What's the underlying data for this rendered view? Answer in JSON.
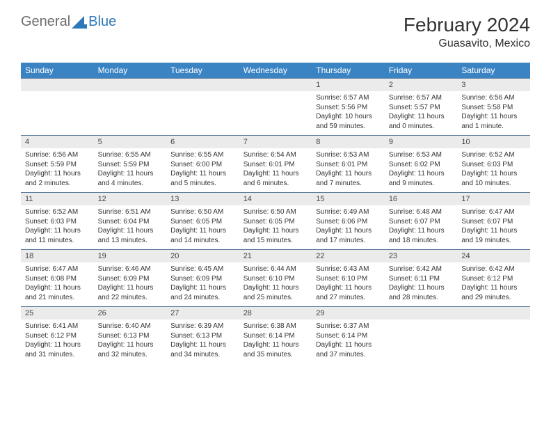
{
  "logo": {
    "text1": "General",
    "text2": "Blue"
  },
  "title": "February 2024",
  "location": "Guasavito, Mexico",
  "colors": {
    "header_bg": "#3b84c4",
    "header_text": "#ffffff",
    "daynum_bg": "#ebebeb",
    "border": "#5a7a9a",
    "logo_gray": "#6c6c6c",
    "logo_blue": "#2e77b8"
  },
  "day_names": [
    "Sunday",
    "Monday",
    "Tuesday",
    "Wednesday",
    "Thursday",
    "Friday",
    "Saturday"
  ],
  "weeks": [
    [
      {
        "empty": true
      },
      {
        "empty": true
      },
      {
        "empty": true
      },
      {
        "empty": true
      },
      {
        "num": "1",
        "sunrise": "Sunrise: 6:57 AM",
        "sunset": "Sunset: 5:56 PM",
        "daylight": "Daylight: 10 hours and 59 minutes."
      },
      {
        "num": "2",
        "sunrise": "Sunrise: 6:57 AM",
        "sunset": "Sunset: 5:57 PM",
        "daylight": "Daylight: 11 hours and 0 minutes."
      },
      {
        "num": "3",
        "sunrise": "Sunrise: 6:56 AM",
        "sunset": "Sunset: 5:58 PM",
        "daylight": "Daylight: 11 hours and 1 minute."
      }
    ],
    [
      {
        "num": "4",
        "sunrise": "Sunrise: 6:56 AM",
        "sunset": "Sunset: 5:59 PM",
        "daylight": "Daylight: 11 hours and 2 minutes."
      },
      {
        "num": "5",
        "sunrise": "Sunrise: 6:55 AM",
        "sunset": "Sunset: 5:59 PM",
        "daylight": "Daylight: 11 hours and 4 minutes."
      },
      {
        "num": "6",
        "sunrise": "Sunrise: 6:55 AM",
        "sunset": "Sunset: 6:00 PM",
        "daylight": "Daylight: 11 hours and 5 minutes."
      },
      {
        "num": "7",
        "sunrise": "Sunrise: 6:54 AM",
        "sunset": "Sunset: 6:01 PM",
        "daylight": "Daylight: 11 hours and 6 minutes."
      },
      {
        "num": "8",
        "sunrise": "Sunrise: 6:53 AM",
        "sunset": "Sunset: 6:01 PM",
        "daylight": "Daylight: 11 hours and 7 minutes."
      },
      {
        "num": "9",
        "sunrise": "Sunrise: 6:53 AM",
        "sunset": "Sunset: 6:02 PM",
        "daylight": "Daylight: 11 hours and 9 minutes."
      },
      {
        "num": "10",
        "sunrise": "Sunrise: 6:52 AM",
        "sunset": "Sunset: 6:03 PM",
        "daylight": "Daylight: 11 hours and 10 minutes."
      }
    ],
    [
      {
        "num": "11",
        "sunrise": "Sunrise: 6:52 AM",
        "sunset": "Sunset: 6:03 PM",
        "daylight": "Daylight: 11 hours and 11 minutes."
      },
      {
        "num": "12",
        "sunrise": "Sunrise: 6:51 AM",
        "sunset": "Sunset: 6:04 PM",
        "daylight": "Daylight: 11 hours and 13 minutes."
      },
      {
        "num": "13",
        "sunrise": "Sunrise: 6:50 AM",
        "sunset": "Sunset: 6:05 PM",
        "daylight": "Daylight: 11 hours and 14 minutes."
      },
      {
        "num": "14",
        "sunrise": "Sunrise: 6:50 AM",
        "sunset": "Sunset: 6:05 PM",
        "daylight": "Daylight: 11 hours and 15 minutes."
      },
      {
        "num": "15",
        "sunrise": "Sunrise: 6:49 AM",
        "sunset": "Sunset: 6:06 PM",
        "daylight": "Daylight: 11 hours and 17 minutes."
      },
      {
        "num": "16",
        "sunrise": "Sunrise: 6:48 AM",
        "sunset": "Sunset: 6:07 PM",
        "daylight": "Daylight: 11 hours and 18 minutes."
      },
      {
        "num": "17",
        "sunrise": "Sunrise: 6:47 AM",
        "sunset": "Sunset: 6:07 PM",
        "daylight": "Daylight: 11 hours and 19 minutes."
      }
    ],
    [
      {
        "num": "18",
        "sunrise": "Sunrise: 6:47 AM",
        "sunset": "Sunset: 6:08 PM",
        "daylight": "Daylight: 11 hours and 21 minutes."
      },
      {
        "num": "19",
        "sunrise": "Sunrise: 6:46 AM",
        "sunset": "Sunset: 6:09 PM",
        "daylight": "Daylight: 11 hours and 22 minutes."
      },
      {
        "num": "20",
        "sunrise": "Sunrise: 6:45 AM",
        "sunset": "Sunset: 6:09 PM",
        "daylight": "Daylight: 11 hours and 24 minutes."
      },
      {
        "num": "21",
        "sunrise": "Sunrise: 6:44 AM",
        "sunset": "Sunset: 6:10 PM",
        "daylight": "Daylight: 11 hours and 25 minutes."
      },
      {
        "num": "22",
        "sunrise": "Sunrise: 6:43 AM",
        "sunset": "Sunset: 6:10 PM",
        "daylight": "Daylight: 11 hours and 27 minutes."
      },
      {
        "num": "23",
        "sunrise": "Sunrise: 6:42 AM",
        "sunset": "Sunset: 6:11 PM",
        "daylight": "Daylight: 11 hours and 28 minutes."
      },
      {
        "num": "24",
        "sunrise": "Sunrise: 6:42 AM",
        "sunset": "Sunset: 6:12 PM",
        "daylight": "Daylight: 11 hours and 29 minutes."
      }
    ],
    [
      {
        "num": "25",
        "sunrise": "Sunrise: 6:41 AM",
        "sunset": "Sunset: 6:12 PM",
        "daylight": "Daylight: 11 hours and 31 minutes."
      },
      {
        "num": "26",
        "sunrise": "Sunrise: 6:40 AM",
        "sunset": "Sunset: 6:13 PM",
        "daylight": "Daylight: 11 hours and 32 minutes."
      },
      {
        "num": "27",
        "sunrise": "Sunrise: 6:39 AM",
        "sunset": "Sunset: 6:13 PM",
        "daylight": "Daylight: 11 hours and 34 minutes."
      },
      {
        "num": "28",
        "sunrise": "Sunrise: 6:38 AM",
        "sunset": "Sunset: 6:14 PM",
        "daylight": "Daylight: 11 hours and 35 minutes."
      },
      {
        "num": "29",
        "sunrise": "Sunrise: 6:37 AM",
        "sunset": "Sunset: 6:14 PM",
        "daylight": "Daylight: 11 hours and 37 minutes."
      },
      {
        "empty": true
      },
      {
        "empty": true
      }
    ]
  ]
}
